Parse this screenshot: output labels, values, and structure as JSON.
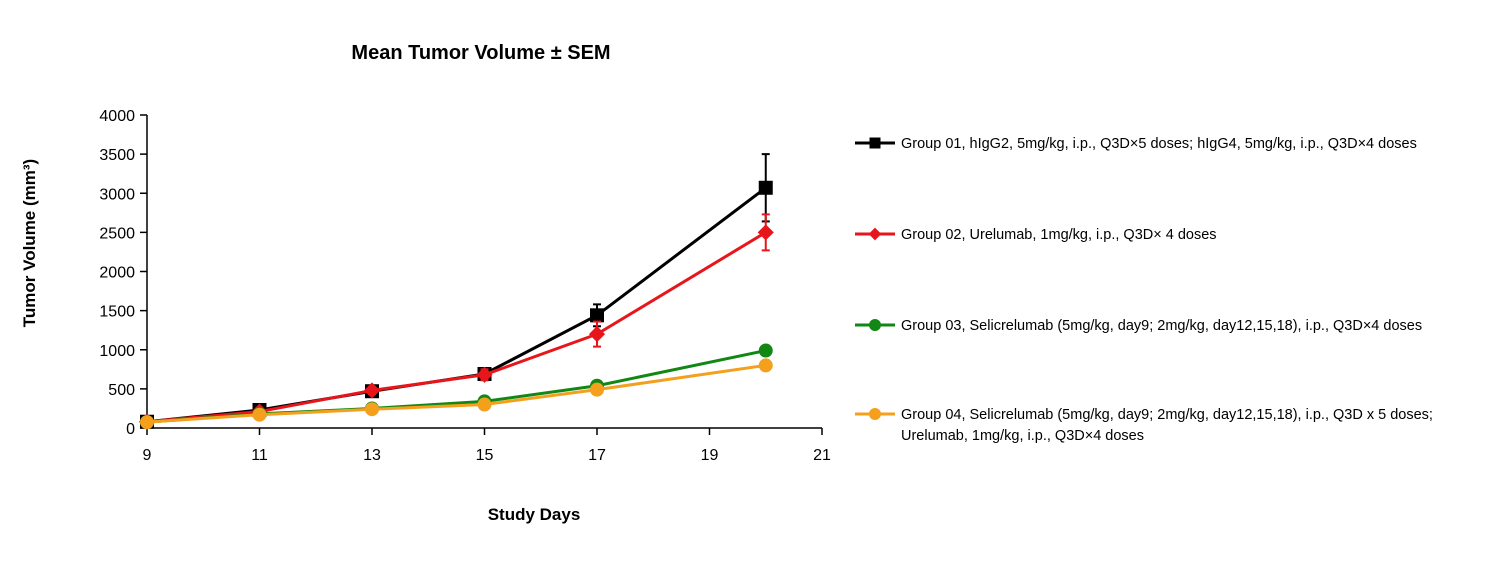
{
  "chart_data": {
    "type": "line",
    "title": "Mean Tumor Volume ± SEM",
    "xlabel": "Study Days",
    "ylabel": "Tumor Volume (mm³)",
    "xlim": [
      9,
      21
    ],
    "ylim": [
      0,
      4000
    ],
    "xticks": [
      9,
      11,
      13,
      15,
      17,
      19,
      21
    ],
    "yticks": [
      0,
      500,
      1000,
      1500,
      2000,
      2500,
      3000,
      3500,
      4000
    ],
    "legend_position": "right",
    "series": [
      {
        "name": "Group 01, hIgG2, 5mg/kg, i.p., Q3D×5 doses; hIgG4, 5mg/kg, i.p., Q3D×4 doses",
        "label_lines": [
          "Group 01, hIgG2, 5mg/kg, i.p., Q3D×5 doses; hIgG4, 5mg/kg, i.p., Q3D×4 doses"
        ],
        "color": "#000000",
        "marker": "square",
        "x": [
          9,
          11,
          13,
          15,
          17,
          20
        ],
        "y": [
          80,
          230,
          470,
          690,
          1440,
          3070
        ],
        "sem": [
          15,
          30,
          50,
          60,
          140,
          430
        ]
      },
      {
        "name": "Group 02, Urelumab, 1mg/kg, i.p., Q3D× 4 doses",
        "label_lines": [
          "Group 02, Urelumab, 1mg/kg, i.p., Q3D× 4 doses"
        ],
        "color": "#e8161b",
        "marker": "diamond",
        "x": [
          9,
          11,
          13,
          15,
          17,
          20
        ],
        "y": [
          80,
          210,
          480,
          680,
          1200,
          2500
        ],
        "sem": [
          15,
          25,
          45,
          70,
          160,
          230
        ]
      },
      {
        "name": "Group 03, Selicrelumab (5mg/kg, day9; 2mg/kg, day12,15,18), i.p., Q3D×4 doses",
        "label_lines": [
          "Group 03, Selicrelumab (5mg/kg, day9; 2mg/kg, day12,15,18), i.p., Q3D×4 doses"
        ],
        "color": "#138713",
        "marker": "circle",
        "x": [
          9,
          11,
          13,
          15,
          17,
          20
        ],
        "y": [
          75,
          180,
          250,
          340,
          540,
          990
        ],
        "sem": [
          10,
          15,
          20,
          25,
          40,
          60
        ]
      },
      {
        "name": "Group 04, Selicrelumab (5mg/kg, day9; 2mg/kg, day12,15,18), i.p., Q3D x 5 doses; Urelumab, 1mg/kg, i.p., Q3D×4 doses",
        "label_lines": [
          "Group 04, Selicrelumab (5mg/kg, day9; 2mg/kg, day12,15,18), i.p., Q3D x 5 doses;",
          "Urelumab, 1mg/kg, i.p., Q3D×4 doses"
        ],
        "color": "#f4a01d",
        "marker": "circle",
        "x": [
          9,
          11,
          13,
          15,
          17,
          20
        ],
        "y": [
          75,
          170,
          240,
          300,
          490,
          800
        ],
        "sem": [
          10,
          15,
          20,
          25,
          35,
          50
        ]
      }
    ]
  }
}
